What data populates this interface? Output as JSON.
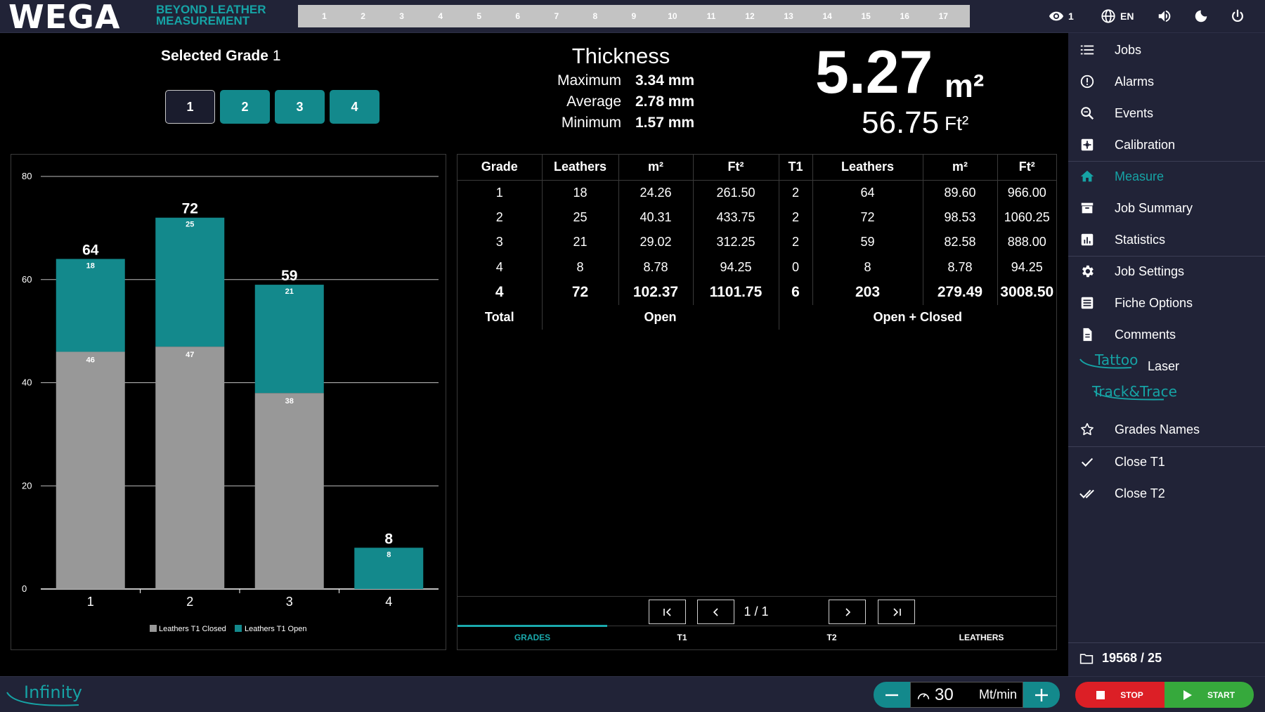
{
  "app": {
    "logo": "WEGA",
    "tagline": "BEYOND LEATHER MEASUREMENT",
    "channels": [
      "1",
      "2",
      "3",
      "4",
      "5",
      "6",
      "7",
      "8",
      "9",
      "10",
      "11",
      "12",
      "13",
      "14",
      "15",
      "16",
      "17"
    ],
    "view_count": "1",
    "language": "EN"
  },
  "selected_grade": {
    "label": "Selected Grade",
    "value": "1",
    "buttons": [
      "1",
      "2",
      "3",
      "4"
    ]
  },
  "thickness": {
    "title": "Thickness",
    "rows": [
      {
        "label": "Maximum",
        "value": "3.34 mm"
      },
      {
        "label": "Average",
        "value": "2.78 mm"
      },
      {
        "label": "Minimum",
        "value": "1.57 mm"
      }
    ]
  },
  "area": {
    "m2_value": "5.27",
    "m2_unit": "m²",
    "ft2_value": "56.75",
    "ft2_unit": "Ft²"
  },
  "chart_data": {
    "type": "bar",
    "stacked": true,
    "categories": [
      "1",
      "2",
      "3",
      "4"
    ],
    "series": [
      {
        "name": "Leathers T1 Closed",
        "values": [
          46,
          47,
          38,
          0
        ],
        "color": "#989898"
      },
      {
        "name": "Leathers T1 Open",
        "values": [
          18,
          25,
          21,
          8
        ],
        "color": "#13898c"
      }
    ],
    "totals": [
      64,
      72,
      59,
      8
    ],
    "ylim": [
      0,
      80
    ],
    "yticks": [
      0,
      20,
      40,
      60,
      80
    ],
    "grid": true,
    "legend": "bottom"
  },
  "table": {
    "headers": [
      "Grade",
      "Leathers",
      "m²",
      "Ft²",
      "T1",
      "Leathers",
      "m²",
      "Ft²"
    ],
    "rows": [
      [
        "1",
        "18",
        "24.26",
        "261.50",
        "2",
        "64",
        "89.60",
        "966.00"
      ],
      [
        "2",
        "25",
        "40.31",
        "433.75",
        "2",
        "72",
        "98.53",
        "1060.25"
      ],
      [
        "3",
        "21",
        "29.02",
        "312.25",
        "2",
        "59",
        "82.58",
        "888.00"
      ],
      [
        "4",
        "8",
        "8.78",
        "94.25",
        "0",
        "8",
        "8.78",
        "94.25"
      ]
    ],
    "total_row": [
      "4",
      "72",
      "102.37",
      "1101.75",
      "6",
      "203",
      "279.49",
      "3008.50"
    ],
    "total_label": "Total",
    "open_label": "Open",
    "open_closed_label": "Open + Closed"
  },
  "pager": {
    "indicator": "1 / 1"
  },
  "tabs": [
    "GRADES",
    "T1",
    "T2",
    "LEATHERS"
  ],
  "sidebar": {
    "items": [
      {
        "label": "Jobs",
        "icon": "list-icon"
      },
      {
        "label": "Alarms",
        "icon": "alert-circle-icon"
      },
      {
        "label": "Events",
        "icon": "search-zoom-icon"
      },
      {
        "label": "Calibration",
        "icon": "calibration-icon"
      },
      {
        "label": "Measure",
        "icon": "home-icon"
      },
      {
        "label": "Job Summary",
        "icon": "archive-icon"
      },
      {
        "label": "Statistics",
        "icon": "bar-chart-icon"
      },
      {
        "label": "Job Settings",
        "icon": "gear-icon"
      },
      {
        "label": "Fiche Options",
        "icon": "list-box-icon"
      },
      {
        "label": "Comments",
        "icon": "document-icon"
      },
      {
        "label": "Laser",
        "icon": "tattoo-logo"
      },
      {
        "label": "Track&Trace",
        "icon": "track-trace-logo"
      },
      {
        "label": "Grades Names",
        "icon": "star-icon"
      },
      {
        "label": "Close T1",
        "icon": "check-icon"
      },
      {
        "label": "Close T2",
        "icon": "double-check-icon"
      }
    ],
    "tattoo_brand": "Tattoo",
    "track_brand": "Track&Trace",
    "job_counter": "19568 / 25"
  },
  "bottom": {
    "brand": "Infinity",
    "speed_value": "30",
    "speed_unit": "Mt/min",
    "stop_label": "STOP",
    "start_label": "START"
  },
  "colors": {
    "accent": "#13898c",
    "background": "#000000",
    "panel": "#212337",
    "closed_bar": "#989898",
    "stop": "#dc1f26",
    "start": "#36a93c"
  }
}
